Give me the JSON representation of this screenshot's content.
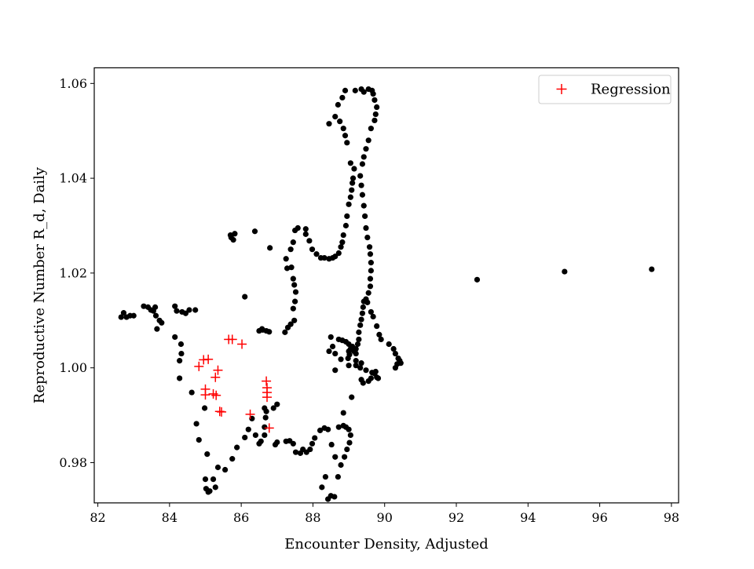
{
  "chart_data": {
    "type": "scatter",
    "title": "",
    "xlabel": "Encounter Density, Adjusted",
    "ylabel": "Reproductive Number R_d, Daily",
    "xlim": [
      81.9,
      98.2
    ],
    "ylim": [
      0.9715,
      1.0633
    ],
    "xticks": [
      82,
      84,
      86,
      88,
      90,
      92,
      94,
      96,
      98
    ],
    "yticks": [
      0.98,
      1.0,
      1.02,
      1.04,
      1.06
    ],
    "xtick_labels": [
      "82",
      "84",
      "86",
      "88",
      "90",
      "92",
      "94",
      "96",
      "98"
    ],
    "ytick_labels": [
      "0.98",
      "1.00",
      "1.02",
      "1.04",
      "1.06"
    ],
    "grid": false,
    "legend": {
      "position": "top-right",
      "entries": [
        "Regression"
      ]
    },
    "colors": {
      "data": "#000000",
      "regression": "#ff0000"
    },
    "series": [
      {
        "marker": "circle",
        "color": "#000000",
        "points": [
          [
            82.65,
            1.0107
          ],
          [
            82.72,
            1.0116
          ],
          [
            82.8,
            1.0107
          ],
          [
            82.9,
            1.011
          ],
          [
            83.0,
            1.011
          ],
          [
            83.28,
            1.013
          ],
          [
            83.4,
            1.0128
          ],
          [
            83.48,
            1.0122
          ],
          [
            83.55,
            1.012
          ],
          [
            83.62,
            1.011
          ],
          [
            83.6,
            1.0128
          ],
          [
            83.72,
            1.01
          ],
          [
            83.65,
            1.0082
          ],
          [
            83.78,
            1.0095
          ],
          [
            84.15,
            1.013
          ],
          [
            84.2,
            1.012
          ],
          [
            84.35,
            1.0118
          ],
          [
            84.45,
            1.0115
          ],
          [
            84.55,
            1.0122
          ],
          [
            84.72,
            1.0122
          ],
          [
            84.15,
            1.0065
          ],
          [
            84.32,
            1.005
          ],
          [
            84.33,
            1.003
          ],
          [
            84.28,
            1.0015
          ],
          [
            84.28,
            0.9978
          ],
          [
            84.62,
            0.9948
          ],
          [
            84.75,
            0.9882
          ],
          [
            84.82,
            0.9848
          ],
          [
            84.98,
            0.9915
          ],
          [
            85.05,
            0.9818
          ],
          [
            85.0,
            0.9765
          ],
          [
            85.02,
            0.9745
          ],
          [
            85.08,
            0.9738
          ],
          [
            85.12,
            0.974
          ],
          [
            85.22,
            0.9765
          ],
          [
            85.28,
            0.9748
          ],
          [
            85.35,
            0.979
          ],
          [
            85.55,
            0.9785
          ],
          [
            85.75,
            0.9808
          ],
          [
            85.88,
            0.9832
          ],
          [
            86.1,
            0.9853
          ],
          [
            86.2,
            0.987
          ],
          [
            86.3,
            0.9893
          ],
          [
            86.4,
            0.9858
          ],
          [
            86.5,
            0.984
          ],
          [
            86.55,
            0.9845
          ],
          [
            86.65,
            0.9858
          ],
          [
            86.65,
            0.9875
          ],
          [
            86.68,
            0.9895
          ],
          [
            86.65,
            0.9915
          ],
          [
            86.7,
            0.9908
          ],
          [
            86.9,
            0.9915
          ],
          [
            87.0,
            0.9923
          ],
          [
            86.95,
            0.9838
          ],
          [
            87.0,
            0.9843
          ],
          [
            87.25,
            0.9845
          ],
          [
            87.35,
            0.9846
          ],
          [
            87.45,
            0.984
          ],
          [
            87.52,
            0.9822
          ],
          [
            87.65,
            0.982
          ],
          [
            87.72,
            0.9828
          ],
          [
            87.82,
            0.9822
          ],
          [
            87.92,
            0.9828
          ],
          [
            87.98,
            0.984
          ],
          [
            88.05,
            0.9852
          ],
          [
            88.2,
            0.9868
          ],
          [
            88.32,
            0.9873
          ],
          [
            88.42,
            0.987
          ],
          [
            88.52,
            0.9838
          ],
          [
            88.62,
            0.9812
          ],
          [
            88.25,
            0.9748
          ],
          [
            88.35,
            0.977
          ],
          [
            88.42,
            0.9723
          ],
          [
            88.5,
            0.973
          ],
          [
            88.6,
            0.9728
          ],
          [
            88.7,
            0.977
          ],
          [
            88.78,
            0.9795
          ],
          [
            88.88,
            0.9812
          ],
          [
            88.95,
            0.9828
          ],
          [
            89.02,
            0.9842
          ],
          [
            89.05,
            0.9858
          ],
          [
            89.0,
            0.987
          ],
          [
            88.92,
            0.9875
          ],
          [
            88.85,
            0.9878
          ],
          [
            88.72,
            0.9875
          ],
          [
            88.85,
            0.9905
          ],
          [
            89.08,
            0.9938
          ],
          [
            86.8,
            1.0253
          ],
          [
            86.5,
            1.0078
          ],
          [
            86.6,
            1.008
          ],
          [
            86.7,
            1.0078
          ],
          [
            86.78,
            1.0076
          ],
          [
            86.58,
            1.0082
          ],
          [
            87.22,
            1.0075
          ],
          [
            87.3,
            1.0085
          ],
          [
            87.38,
            1.0092
          ],
          [
            87.48,
            1.01
          ],
          [
            87.45,
            1.0125
          ],
          [
            87.5,
            1.014
          ],
          [
            87.52,
            1.016
          ],
          [
            87.48,
            1.0175
          ],
          [
            87.45,
            1.0188
          ],
          [
            87.4,
            1.0212
          ],
          [
            87.28,
            1.021
          ],
          [
            87.25,
            1.023
          ],
          [
            87.38,
            1.025
          ],
          [
            87.45,
            1.0265
          ],
          [
            87.5,
            1.029
          ],
          [
            87.58,
            1.0295
          ],
          [
            87.8,
            1.0293
          ],
          [
            87.8,
            1.0282
          ],
          [
            87.9,
            1.0268
          ],
          [
            87.98,
            1.025
          ],
          [
            88.1,
            1.024
          ],
          [
            88.22,
            1.0232
          ],
          [
            88.32,
            1.0232
          ],
          [
            88.45,
            1.023
          ],
          [
            88.55,
            1.0232
          ],
          [
            88.62,
            1.0235
          ],
          [
            88.72,
            1.0242
          ],
          [
            88.78,
            1.0255
          ],
          [
            88.82,
            1.0265
          ],
          [
            88.85,
            1.028
          ],
          [
            88.92,
            1.03
          ],
          [
            88.95,
            1.032
          ],
          [
            89.0,
            1.0345
          ],
          [
            89.05,
            1.036
          ],
          [
            89.08,
            1.0375
          ],
          [
            89.1,
            1.039
          ],
          [
            89.12,
            1.04
          ],
          [
            89.15,
            1.042
          ],
          [
            89.05,
            1.0432
          ],
          [
            88.95,
            1.0475
          ],
          [
            88.9,
            1.049
          ],
          [
            88.85,
            1.0505
          ],
          [
            88.75,
            1.052
          ],
          [
            88.62,
            1.053
          ],
          [
            88.45,
            1.0515
          ],
          [
            88.7,
            1.0555
          ],
          [
            88.82,
            1.057
          ],
          [
            88.9,
            1.0585
          ],
          [
            89.18,
            1.0585
          ],
          [
            89.35,
            1.0588
          ],
          [
            89.42,
            1.0582
          ],
          [
            89.55,
            1.0588
          ],
          [
            89.65,
            1.0585
          ],
          [
            89.68,
            1.0578
          ],
          [
            89.72,
            1.0565
          ],
          [
            89.78,
            1.055
          ],
          [
            89.75,
            1.0535
          ],
          [
            89.72,
            1.0522
          ],
          [
            89.62,
            1.0505
          ],
          [
            89.55,
            1.048
          ],
          [
            89.48,
            1.0462
          ],
          [
            89.42,
            1.0445
          ],
          [
            89.38,
            1.043
          ],
          [
            89.32,
            1.0405
          ],
          [
            89.35,
            1.0385
          ],
          [
            89.38,
            1.0365
          ],
          [
            89.42,
            1.0342
          ],
          [
            89.45,
            1.032
          ],
          [
            89.48,
            1.0295
          ],
          [
            89.52,
            1.0275
          ],
          [
            89.58,
            1.0255
          ],
          [
            89.6,
            1.024
          ],
          [
            89.62,
            1.0222
          ],
          [
            89.62,
            1.0205
          ],
          [
            89.6,
            1.0188
          ],
          [
            89.6,
            1.0172
          ],
          [
            89.55,
            1.0158
          ],
          [
            89.48,
            1.0145
          ],
          [
            89.42,
            1.014
          ],
          [
            89.52,
            1.0138
          ],
          [
            89.4,
            1.0128
          ],
          [
            89.38,
            1.0115
          ],
          [
            89.35,
            1.0102
          ],
          [
            89.32,
            1.009
          ],
          [
            89.28,
            1.0075
          ],
          [
            89.28,
            1.006
          ],
          [
            89.25,
            1.005
          ],
          [
            89.2,
            1.004
          ],
          [
            89.2,
            1.003
          ],
          [
            89.2,
            1.0015
          ],
          [
            89.2,
            1.0005
          ],
          [
            89.32,
            1.0
          ],
          [
            89.35,
            1.001
          ],
          [
            89.48,
            0.9995
          ],
          [
            89.35,
            0.9975
          ],
          [
            89.4,
            0.9968
          ],
          [
            89.55,
            0.9972
          ],
          [
            89.62,
            0.9978
          ],
          [
            89.72,
            0.9988
          ],
          [
            89.82,
            0.9978
          ],
          [
            89.65,
            0.999
          ],
          [
            89.75,
            0.9992
          ],
          [
            89.78,
            0.998
          ],
          [
            88.5,
            1.0065
          ],
          [
            88.55,
            1.0045
          ],
          [
            88.45,
            1.0035
          ],
          [
            88.62,
            1.003
          ],
          [
            88.72,
            1.006
          ],
          [
            88.82,
            1.0058
          ],
          [
            88.92,
            1.0055
          ],
          [
            89.0,
            1.005
          ],
          [
            89.05,
            1.004
          ],
          [
            89.1,
            1.0045
          ],
          [
            89.15,
            1.0035
          ],
          [
            89.0,
            1.0035
          ],
          [
            89.02,
            1.0028
          ],
          [
            88.98,
            1.002
          ],
          [
            88.62,
            0.9995
          ],
          [
            88.78,
            1.0018
          ],
          [
            89.0,
            1.0005
          ],
          [
            89.62,
            1.0118
          ],
          [
            89.68,
            1.0108
          ],
          [
            89.78,
            1.0088
          ],
          [
            89.85,
            1.007
          ],
          [
            89.9,
            1.006
          ],
          [
            90.12,
            1.005
          ],
          [
            90.25,
            1.004
          ],
          [
            90.3,
            1.003
          ],
          [
            90.38,
            1.002
          ],
          [
            90.42,
            1.0015
          ],
          [
            90.45,
            1.001
          ],
          [
            90.35,
            1.0008
          ],
          [
            90.3,
            1.0
          ],
          [
            85.7,
            1.028
          ],
          [
            85.72,
            1.0275
          ],
          [
            85.78,
            1.027
          ],
          [
            85.82,
            1.0283
          ],
          [
            86.1,
            1.015
          ],
          [
            86.38,
            1.0288
          ],
          [
            92.58,
            1.0186
          ],
          [
            95.02,
            1.0203
          ],
          [
            97.45,
            1.0208
          ]
        ]
      },
      {
        "name": "Regression",
        "marker": "plus",
        "color": "#ff0000",
        "points": [
          [
            84.82,
            1.0003
          ],
          [
            84.95,
            1.0017
          ],
          [
            85.08,
            1.0018
          ],
          [
            85.0,
            0.9955
          ],
          [
            85.0,
            0.9943
          ],
          [
            85.22,
            0.9945
          ],
          [
            85.3,
            0.9942
          ],
          [
            85.28,
            0.998
          ],
          [
            85.35,
            0.9995
          ],
          [
            85.4,
            0.9908
          ],
          [
            85.45,
            0.9907
          ],
          [
            85.65,
            1.006
          ],
          [
            85.75,
            1.006
          ],
          [
            86.02,
            1.005
          ],
          [
            86.25,
            0.9902
          ],
          [
            86.7,
            0.9972
          ],
          [
            86.72,
            0.9958
          ],
          [
            86.72,
            0.9948
          ],
          [
            86.72,
            0.9938
          ],
          [
            86.78,
            0.9873
          ]
        ]
      }
    ]
  }
}
